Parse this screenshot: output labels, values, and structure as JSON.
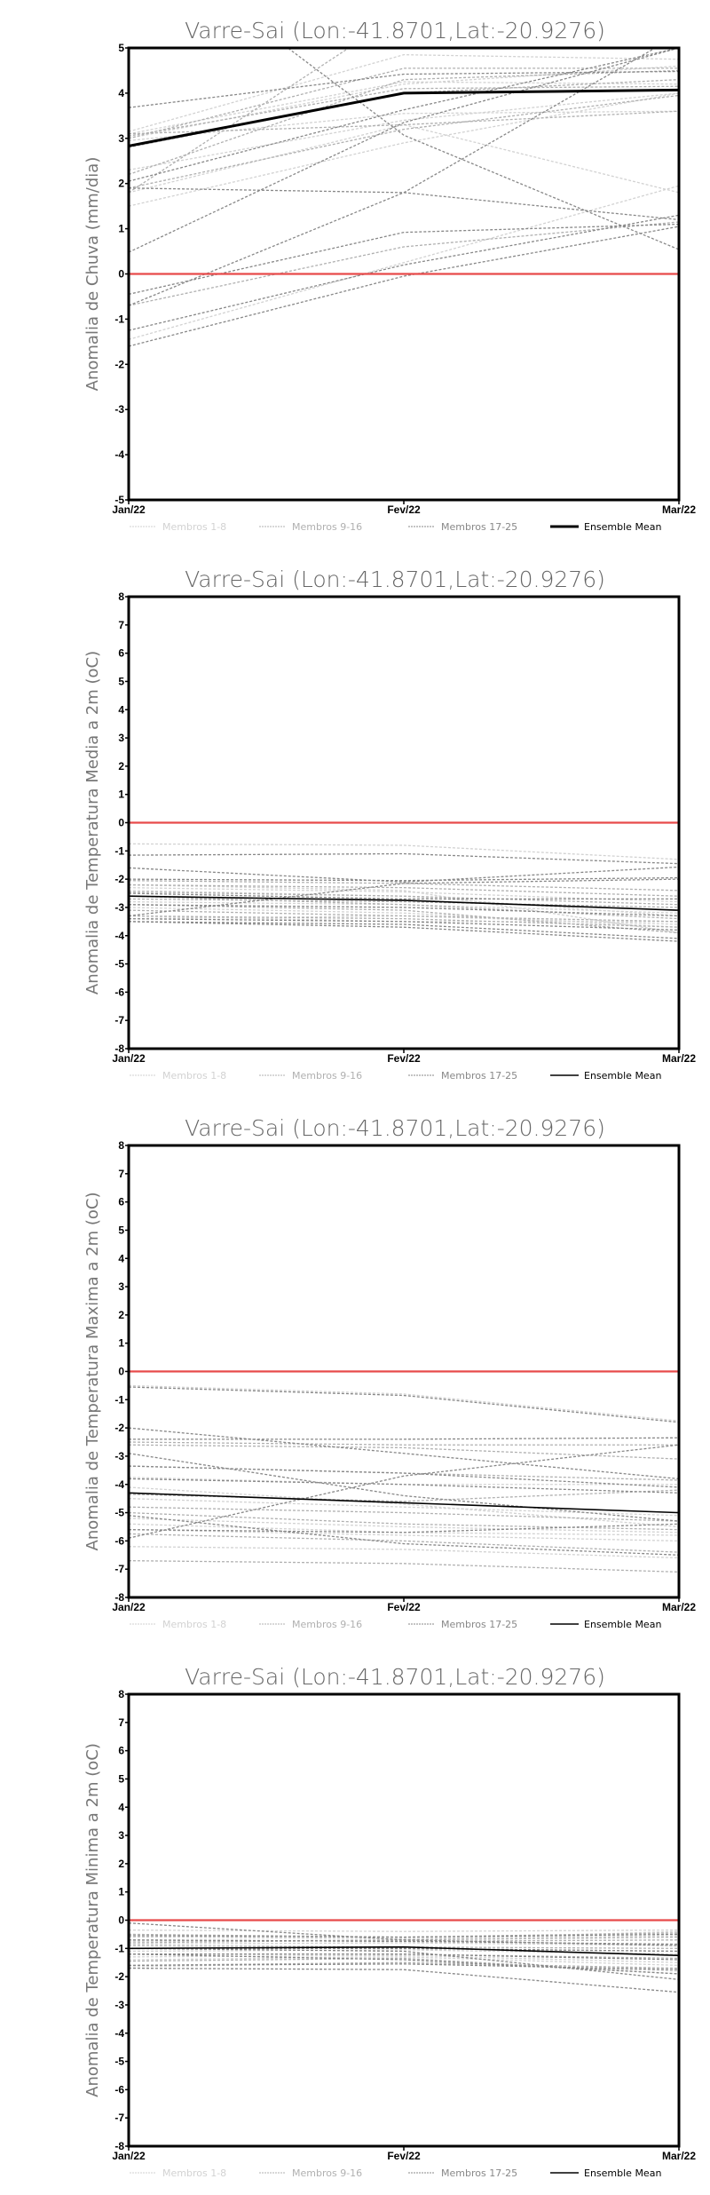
{
  "chart_data": [
    {
      "type": "line",
      "title": "Varre-Sai (Lon:-41.8701,Lat:-20.9276)",
      "ylabel": "Anomalia de Chuva (mm/dia)",
      "xlabel": "",
      "categories": [
        "Jan/22",
        "Fev/22",
        "Mar/22"
      ],
      "ylim": [
        -5,
        5
      ],
      "yticks": [
        -5,
        -4,
        -3,
        -2,
        -1,
        0,
        1,
        2,
        3,
        4,
        5
      ],
      "mean_bold": true,
      "groups": [
        {
          "name": "Membros 1-8",
          "color": "#d2d2d2",
          "members": [
            [
              -1.45,
              0.25,
              1.95
            ],
            [
              1.5,
              2.9,
              4.0
            ],
            [
              1.8,
              3.3,
              1.8
            ],
            [
              3.1,
              4.25,
              4.2
            ],
            [
              3.15,
              4.85,
              4.75
            ],
            [
              2.95,
              3.55,
              3.6
            ],
            [
              2.3,
              3.4,
              4.0
            ],
            [
              3.0,
              4.2,
              4.6
            ]
          ]
        },
        {
          "name": "Membros 9-16",
          "color": "#b0b0b0",
          "members": [
            [
              3.05,
              4.1,
              4.15
            ],
            [
              3.0,
              4.55,
              4.55
            ],
            [
              -0.7,
              0.6,
              1.15
            ],
            [
              1.9,
              3.2,
              3.95
            ],
            [
              2.8,
              4.0,
              4.3
            ],
            [
              3.1,
              3.3,
              3.6
            ],
            [
              1.8,
              5.8,
              6.5
            ],
            [
              2.2,
              4.3,
              4.5
            ]
          ]
        },
        {
          "name": "Membros 17-25",
          "color": "#888888",
          "members": [
            [
              3.68,
              4.42,
              4.48
            ],
            [
              7.65,
              3.07,
              0.54
            ],
            [
              0.48,
              3.35,
              5.0
            ],
            [
              -0.7,
              1.8,
              5.3
            ],
            [
              1.9,
              1.8,
              1.2
            ],
            [
              2.05,
              3.63,
              5.0
            ],
            [
              -0.45,
              0.92,
              1.1
            ],
            [
              -1.25,
              0.2,
              1.3
            ],
            [
              -1.6,
              -0.05,
              1.05
            ]
          ]
        }
      ],
      "mean": {
        "name": "Ensemble Mean",
        "color": "#000000",
        "values": [
          2.83,
          4.0,
          4.07
        ]
      },
      "reference": {
        "value": 0,
        "color": "#e84a4a"
      }
    },
    {
      "type": "line",
      "title": "Varre-Sai (Lon:-41.8701,Lat:-20.9276)",
      "ylabel": "Anomalia de Temperatura Media a 2m (oC)",
      "xlabel": "",
      "categories": [
        "Jan/22",
        "Fev/22",
        "Mar/22"
      ],
      "ylim": [
        -8,
        8
      ],
      "yticks": [
        -8,
        -7,
        -6,
        -5,
        -4,
        -3,
        -2,
        -1,
        0,
        1,
        2,
        3,
        4,
        5,
        6,
        7,
        8
      ],
      "mean_bold": false,
      "groups": [
        {
          "name": "Membros 1-8",
          "color": "#d2d2d2",
          "members": [
            [
              -0.75,
              -0.8,
              -1.3
            ],
            [
              -2.3,
              -2.45,
              -2.8
            ],
            [
              -2.8,
              -2.9,
              -3.2
            ],
            [
              -3.4,
              -3.3,
              -3.6
            ],
            [
              -2.4,
              -2.6,
              -3.3
            ],
            [
              -3.0,
              -3.2,
              -3.7
            ],
            [
              -2.2,
              -2.4,
              -3.9
            ],
            [
              -3.3,
              -3.5,
              -3.5
            ]
          ]
        },
        {
          "name": "Membros 9-16",
          "color": "#b0b0b0",
          "members": [
            [
              -2.05,
              -2.15,
              -2.4
            ],
            [
              -2.45,
              -2.6,
              -2.9
            ],
            [
              -2.7,
              -2.8,
              -3.0
            ],
            [
              -3.3,
              -3.4,
              -3.7
            ],
            [
              -2.9,
              -3.1,
              -3.9
            ],
            [
              -2.6,
              -2.9,
              -3.4
            ],
            [
              -3.1,
              -3.3,
              -3.5
            ],
            [
              -2.2,
              -2.3,
              -2.6
            ]
          ]
        },
        {
          "name": "Membros 17-25",
          "color": "#888888",
          "members": [
            [
              -1.15,
              -1.1,
              -1.45
            ],
            [
              -1.6,
              -2.1,
              -1.57
            ],
            [
              -2.0,
              -2.05,
              -1.95
            ],
            [
              -3.3,
              -2.15,
              -2.0
            ],
            [
              -3.4,
              -3.5,
              -3.8
            ],
            [
              -3.5,
              -3.6,
              -4.1
            ],
            [
              -3.5,
              -3.7,
              -4.2
            ],
            [
              -2.5,
              -2.7,
              -2.7
            ],
            [
              -2.9,
              -3.0,
              -3.3
            ]
          ]
        }
      ],
      "mean": {
        "name": "Ensemble Mean",
        "color": "#000000",
        "values": [
          -2.6,
          -2.75,
          -3.1
        ]
      },
      "reference": {
        "value": 0,
        "color": "#e84a4a"
      }
    },
    {
      "type": "line",
      "title": "Varre-Sai (Lon:-41.8701,Lat:-20.9276)",
      "ylabel": "Anomalia de Temperatura Maxima a 2m (oC)",
      "xlabel": "",
      "categories": [
        "Jan/22",
        "Fev/22",
        "Mar/22"
      ],
      "ylim": [
        -8,
        8
      ],
      "yticks": [
        -8,
        -7,
        -6,
        -5,
        -4,
        -3,
        -2,
        -1,
        0,
        1,
        2,
        3,
        4,
        5,
        6,
        7,
        8
      ],
      "mean_bold": false,
      "groups": [
        {
          "name": "Membros 1-8",
          "color": "#d2d2d2",
          "members": [
            [
              -0.5,
              -0.8,
              -1.75
            ],
            [
              -3.75,
              -4.0,
              -4.0
            ],
            [
              -4.1,
              -4.7,
              -5.5
            ],
            [
              -5.2,
              -5.5,
              -5.7
            ],
            [
              -5.6,
              -5.8,
              -6.0
            ],
            [
              -4.5,
              -4.8,
              -5.1
            ],
            [
              -6.2,
              -6.3,
              -6.6
            ],
            [
              -5.4,
              -5.7,
              -5.8
            ]
          ]
        },
        {
          "name": "Membros 9-16",
          "color": "#b0b0b0",
          "members": [
            [
              -2.5,
              -2.6,
              -2.6
            ],
            [
              -2.6,
              -2.7,
              -3.1
            ],
            [
              -4.35,
              -4.6,
              -4.2
            ],
            [
              -4.8,
              -5.0,
              -5.3
            ],
            [
              -5.0,
              -5.4,
              -5.6
            ],
            [
              -5.75,
              -6.0,
              -6.4
            ],
            [
              -6.7,
              -6.8,
              -7.1
            ],
            [
              -3.35,
              -3.6,
              -3.85
            ]
          ]
        },
        {
          "name": "Membros 17-25",
          "color": "#888888",
          "members": [
            [
              -0.55,
              -0.85,
              -1.8
            ],
            [
              -2.0,
              -2.9,
              -3.8
            ],
            [
              -2.4,
              -2.4,
              -2.35
            ],
            [
              -2.9,
              -4.4,
              -5.3
            ],
            [
              -5.9,
              -3.7,
              -2.6
            ],
            [
              -3.35,
              -3.6,
              -4.1
            ],
            [
              -5.1,
              -6.1,
              -6.5
            ],
            [
              -5.6,
              -5.7,
              -5.4
            ],
            [
              -3.8,
              -4.0,
              -4.3
            ]
          ]
        }
      ],
      "mean": {
        "name": "Ensemble Mean",
        "color": "#000000",
        "values": [
          -4.3,
          -4.65,
          -5.0
        ]
      },
      "reference": {
        "value": 0,
        "color": "#e84a4a"
      }
    },
    {
      "type": "line",
      "title": "Varre-Sai (Lon:-41.8701,Lat:-20.9276)",
      "ylabel": "Anomalia de Temperatura Minima a 2m (oC)",
      "xlabel": "",
      "categories": [
        "Jan/22",
        "Fev/22",
        "Mar/22"
      ],
      "ylim": [
        -8,
        8
      ],
      "yticks": [
        -8,
        -7,
        -6,
        -5,
        -4,
        -3,
        -2,
        -1,
        0,
        1,
        2,
        3,
        4,
        5,
        6,
        7,
        8
      ],
      "mean_bold": false,
      "groups": [
        {
          "name": "Membros 1-8",
          "color": "#d2d2d2",
          "members": [
            [
              -0.35,
              -0.4,
              -0.35
            ],
            [
              -0.6,
              -0.65,
              -0.55
            ],
            [
              -0.85,
              -0.8,
              -0.9
            ],
            [
              -1.1,
              -1.05,
              -1.2
            ],
            [
              -1.4,
              -1.3,
              -1.6
            ],
            [
              -1.65,
              -1.5,
              -1.8
            ],
            [
              -0.75,
              -0.7,
              -0.4
            ],
            [
              -1.3,
              -1.25,
              -1.5
            ]
          ]
        },
        {
          "name": "Membros 9-16",
          "color": "#b0b0b0",
          "members": [
            [
              -0.5,
              -0.6,
              -0.45
            ],
            [
              -0.7,
              -0.75,
              -0.7
            ],
            [
              -0.9,
              -0.95,
              -1.0
            ],
            [
              -1.2,
              -1.2,
              -1.35
            ],
            [
              -1.6,
              -1.5,
              -1.7
            ],
            [
              -1.0,
              -1.0,
              -1.1
            ],
            [
              -1.45,
              -1.35,
              -1.9
            ],
            [
              -0.8,
              -0.7,
              -0.6
            ]
          ]
        },
        {
          "name": "Membros 17-25",
          "color": "#888888",
          "members": [
            [
              -0.1,
              -0.7,
              -0.9
            ],
            [
              -0.55,
              -0.6,
              -0.5
            ],
            [
              -0.7,
              -0.75,
              -0.85
            ],
            [
              -1.0,
              -1.0,
              -1.1
            ],
            [
              -1.2,
              -1.2,
              -1.4
            ],
            [
              -1.7,
              -1.75,
              -2.55
            ],
            [
              -1.0,
              -1.1,
              -2.1
            ],
            [
              -1.2,
              -1.4,
              -1.9
            ],
            [
              -1.6,
              -1.55,
              -1.75
            ]
          ]
        }
      ],
      "mean": {
        "name": "Ensemble Mean",
        "color": "#000000",
        "values": [
          -1.0,
          -0.95,
          -1.25
        ]
      },
      "reference": {
        "value": 0,
        "color": "#e84a4a"
      }
    }
  ]
}
